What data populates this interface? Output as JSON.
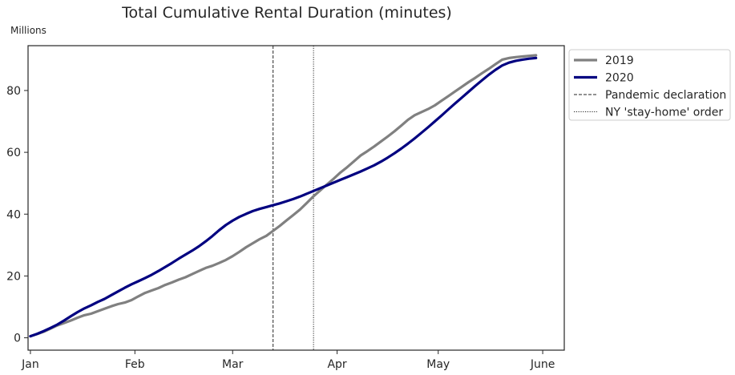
{
  "chart_data": {
    "type": "line",
    "title": "Total Cumulative Rental Duration (minutes)",
    "y_unit_label": "Millions",
    "xlabel": "",
    "ylabel": "",
    "x_ticks": [
      "Jan",
      "Feb",
      "Mar",
      "Apr",
      "May",
      "June"
    ],
    "x_tick_days": [
      0,
      31,
      60,
      91,
      121,
      152
    ],
    "xlim_days": [
      -0.7,
      158.4
    ],
    "ylim": [
      -4,
      94.5
    ],
    "y_ticks": [
      0,
      20,
      40,
      60,
      80
    ],
    "grid": false,
    "legend_position": "outside-top-right",
    "series": [
      {
        "name": "2019",
        "color": "#808080",
        "style": "solid",
        "x": [
          0,
          2,
          4,
          6,
          8,
          10,
          12,
          14,
          16,
          18,
          20,
          22,
          24,
          26,
          28,
          30,
          32,
          34,
          36,
          38,
          40,
          42,
          44,
          46,
          48,
          50,
          52,
          54,
          56,
          58,
          60,
          62,
          64,
          66,
          68,
          70,
          72,
          74,
          76,
          78,
          80,
          82,
          84,
          86,
          88,
          90,
          92,
          94,
          96,
          98,
          100,
          102,
          104,
          106,
          108,
          110,
          112,
          114,
          116,
          118,
          120,
          122,
          124,
          126,
          128,
          130,
          132,
          134,
          136,
          138,
          140,
          142,
          144,
          146,
          148,
          150
        ],
        "y": [
          0.5,
          1.2,
          2.0,
          3.0,
          4.0,
          4.8,
          5.6,
          6.5,
          7.3,
          7.8,
          8.6,
          9.4,
          10.2,
          10.9,
          11.4,
          12.2,
          13.4,
          14.5,
          15.3,
          16.1,
          17.1,
          17.9,
          18.8,
          19.6,
          20.6,
          21.6,
          22.6,
          23.3,
          24.2,
          25.2,
          26.4,
          27.8,
          29.3,
          30.6,
          31.9,
          33.0,
          34.6,
          36.2,
          38.0,
          39.7,
          41.5,
          43.6,
          45.8,
          47.7,
          49.6,
          51.5,
          53.5,
          55.2,
          57.1,
          59.0,
          60.4,
          61.9,
          63.5,
          65.1,
          66.8,
          68.6,
          70.5,
          72.0,
          73.0,
          74.0,
          75.2,
          76.7,
          78.2,
          79.7,
          81.2,
          82.7,
          84.1,
          85.6,
          87.0,
          88.5,
          90.0,
          90.5,
          90.8,
          91.0,
          91.2,
          91.4
        ]
      },
      {
        "name": "2020",
        "color": "#000080",
        "style": "solid",
        "x": [
          0,
          2,
          4,
          6,
          8,
          10,
          12,
          14,
          16,
          18,
          20,
          22,
          24,
          26,
          28,
          30,
          32,
          34,
          36,
          38,
          40,
          42,
          44,
          46,
          48,
          50,
          52,
          54,
          56,
          58,
          60,
          62,
          64,
          66,
          68,
          70,
          72,
          74,
          76,
          78,
          80,
          82,
          84,
          86,
          88,
          90,
          92,
          94,
          96,
          98,
          100,
          102,
          104,
          106,
          108,
          110,
          112,
          114,
          116,
          118,
          120,
          122,
          124,
          126,
          128,
          130,
          132,
          134,
          136,
          138,
          140,
          142,
          144,
          146,
          148,
          150
        ],
        "y": [
          0.5,
          1.3,
          2.2,
          3.2,
          4.3,
          5.6,
          7.0,
          8.3,
          9.5,
          10.5,
          11.6,
          12.6,
          13.8,
          15.0,
          16.2,
          17.3,
          18.3,
          19.3,
          20.4,
          21.6,
          22.9,
          24.2,
          25.6,
          26.9,
          28.2,
          29.6,
          31.2,
          32.9,
          34.8,
          36.5,
          37.9,
          39.1,
          40.1,
          41.0,
          41.7,
          42.3,
          42.9,
          43.5,
          44.2,
          44.9,
          45.7,
          46.6,
          47.5,
          48.4,
          49.3,
          50.2,
          51.1,
          52.0,
          52.9,
          53.8,
          54.8,
          55.8,
          57.0,
          58.3,
          59.7,
          61.2,
          62.8,
          64.5,
          66.3,
          68.1,
          70.0,
          71.9,
          73.9,
          75.8,
          77.7,
          79.6,
          81.5,
          83.3,
          85.1,
          86.7,
          88.1,
          89.0,
          89.6,
          90.0,
          90.3,
          90.5
        ]
      }
    ],
    "annotations": [
      {
        "label": "Pandemic declaration",
        "x": 72,
        "style": "dashed"
      },
      {
        "label": "NY 'stay-home' order",
        "x": 84,
        "style": "dotted"
      }
    ],
    "legend": [
      {
        "label": "2019",
        "style": "solid",
        "color": "#808080"
      },
      {
        "label": "2020",
        "style": "solid",
        "color": "#000080"
      },
      {
        "label": "Pandemic declaration",
        "style": "dashed",
        "color": "#262626"
      },
      {
        "label": "NY 'stay-home' order",
        "style": "dotted",
        "color": "#262626"
      }
    ]
  }
}
